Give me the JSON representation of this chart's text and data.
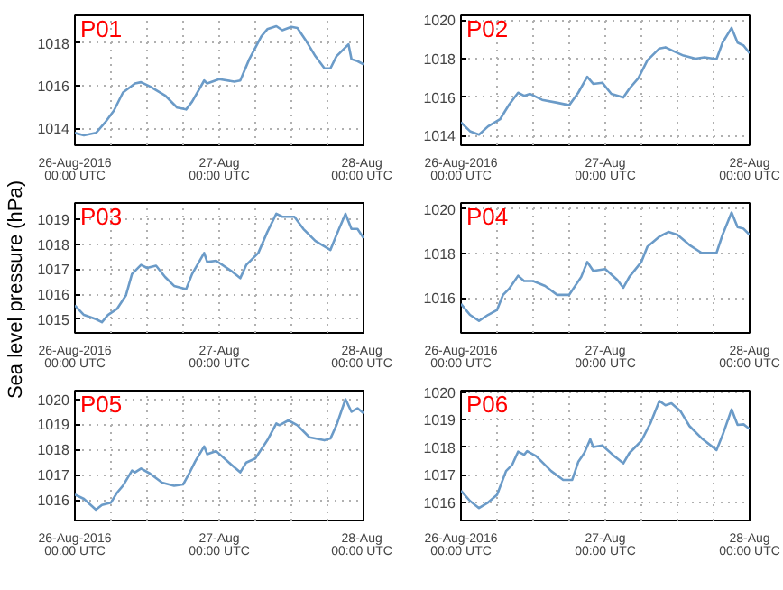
{
  "chart_data": [
    {
      "type": "line",
      "title": "P01",
      "color": "#6b9bc8",
      "grid": true,
      "x": [
        "2016-08-26T00:00",
        "2016-08-26T01:30",
        "2016-08-26T03:30",
        "2016-08-26T05:00",
        "2016-08-26T06:30",
        "2016-08-26T08:00",
        "2016-08-26T10:00",
        "2016-08-26T11:00",
        "2016-08-26T12:30",
        "2016-08-26T15:00",
        "2016-08-26T17:00",
        "2016-08-26T18:30",
        "2016-08-26T19:30",
        "2016-08-26T21:30",
        "2016-08-26T22:00",
        "2016-08-27T00:00",
        "2016-08-27T02:30",
        "2016-08-27T03:30",
        "2016-08-27T05:00",
        "2016-08-27T07:00",
        "2016-08-27T08:00",
        "2016-08-27T09:30",
        "2016-08-27T10:30",
        "2016-08-27T12:00",
        "2016-08-27T13:00",
        "2016-08-27T14:30",
        "2016-08-27T16:00",
        "2016-08-27T17:30",
        "2016-08-27T18:30",
        "2016-08-27T19:30",
        "2016-08-27T21:30",
        "2016-08-27T22:00",
        "2016-08-27T23:00",
        "2016-08-28T00:00"
      ],
      "values": [
        1013.78,
        1013.67,
        1013.78,
        1014.26,
        1014.83,
        1015.68,
        1016.1,
        1016.16,
        1015.96,
        1015.54,
        1014.97,
        1014.88,
        1015.25,
        1016.24,
        1016.1,
        1016.3,
        1016.19,
        1016.24,
        1017.24,
        1018.31,
        1018.65,
        1018.79,
        1018.6,
        1018.76,
        1018.71,
        1018.08,
        1017.38,
        1016.81,
        1016.81,
        1017.38,
        1017.94,
        1017.24,
        1017.15,
        1017.0
      ],
      "xlim": [
        "2016-08-26T00:00",
        "2016-08-28T00:00"
      ],
      "xticks": [
        {
          "value": "2016-08-26T00:00",
          "label": "26-Aug-2016\n00:00 UTC"
        },
        {
          "value": "2016-08-26T06:00",
          "label": null
        },
        {
          "value": "2016-08-26T12:00",
          "label": null
        },
        {
          "value": "2016-08-26T18:00",
          "label": null
        },
        {
          "value": "2016-08-27T00:00",
          "label": "27-Aug\n00:00 UTC"
        },
        {
          "value": "2016-08-27T06:00",
          "label": null
        },
        {
          "value": "2016-08-27T12:00",
          "label": null
        },
        {
          "value": "2016-08-27T18:00",
          "label": null
        },
        {
          "value": "2016-08-28T00:00",
          "label": "28-Aug\n00:00 UTC"
        }
      ],
      "ylim": [
        1013.2,
        1019.3
      ],
      "yticks": [
        1014,
        1016,
        1018
      ]
    },
    {
      "type": "line",
      "title": "P02",
      "color": "#6b9bc8",
      "grid": true,
      "x": [
        "2016-08-26T00:00",
        "2016-08-26T01:30",
        "2016-08-26T03:00",
        "2016-08-26T04:30",
        "2016-08-26T06:30",
        "2016-08-26T08:00",
        "2016-08-26T09:30",
        "2016-08-26T10:30",
        "2016-08-26T11:30",
        "2016-08-26T13:30",
        "2016-08-26T16:00",
        "2016-08-26T18:00",
        "2016-08-26T19:30",
        "2016-08-26T21:00",
        "2016-08-26T22:00",
        "2016-08-26T23:30",
        "2016-08-27T01:00",
        "2016-08-27T03:00",
        "2016-08-27T04:00",
        "2016-08-27T05:30",
        "2016-08-27T07:00",
        "2016-08-27T09:00",
        "2016-08-27T10:00",
        "2016-08-27T11:30",
        "2016-08-27T13:00",
        "2016-08-27T15:00",
        "2016-08-27T16:30",
        "2016-08-27T18:30",
        "2016-08-27T19:30",
        "2016-08-27T21:00",
        "2016-08-27T22:00",
        "2016-08-27T23:00",
        "2016-08-28T00:00"
      ],
      "values": [
        1014.69,
        1014.23,
        1014.05,
        1014.48,
        1014.85,
        1015.61,
        1016.23,
        1016.07,
        1016.17,
        1015.86,
        1015.71,
        1015.58,
        1016.23,
        1017.06,
        1016.69,
        1016.75,
        1016.17,
        1015.98,
        1016.44,
        1016.99,
        1017.91,
        1018.53,
        1018.59,
        1018.37,
        1018.16,
        1018.0,
        1018.07,
        1017.98,
        1018.83,
        1019.6,
        1018.83,
        1018.68,
        1018.28
      ],
      "xlim": [
        "2016-08-26T00:00",
        "2016-08-28T00:00"
      ],
      "xticks": [
        {
          "value": "2016-08-26T00:00",
          "label": "26-Aug-2016\n00:00 UTC"
        },
        {
          "value": "2016-08-26T06:00",
          "label": null
        },
        {
          "value": "2016-08-26T12:00",
          "label": null
        },
        {
          "value": "2016-08-26T18:00",
          "label": null
        },
        {
          "value": "2016-08-27T00:00",
          "label": "27-Aug\n00:00 UTC"
        },
        {
          "value": "2016-08-27T06:00",
          "label": null
        },
        {
          "value": "2016-08-27T12:00",
          "label": null
        },
        {
          "value": "2016-08-27T18:00",
          "label": null
        },
        {
          "value": "2016-08-28T00:00",
          "label": "28-Aug\n00:00 UTC"
        }
      ],
      "ylim": [
        1013.5,
        1020.25
      ],
      "yticks": [
        1014,
        1016,
        1018,
        1020
      ]
    },
    {
      "type": "line",
      "title": "P03",
      "ylabel": "Sea level pressure (hPa)",
      "color": "#6b9bc8",
      "grid": true,
      "x": [
        "2016-08-26T00:00",
        "2016-08-26T01:30",
        "2016-08-26T03:30",
        "2016-08-26T04:30",
        "2016-08-26T05:30",
        "2016-08-26T07:00",
        "2016-08-26T08:30",
        "2016-08-26T09:30",
        "2016-08-26T11:00",
        "2016-08-26T12:00",
        "2016-08-26T13:30",
        "2016-08-26T15:00",
        "2016-08-26T16:30",
        "2016-08-26T18:30",
        "2016-08-26T19:30",
        "2016-08-26T21:30",
        "2016-08-26T22:00",
        "2016-08-26T23:30",
        "2016-08-27T02:00",
        "2016-08-27T03:30",
        "2016-08-27T04:30",
        "2016-08-27T06:30",
        "2016-08-27T08:00",
        "2016-08-27T09:30",
        "2016-08-27T10:30",
        "2016-08-27T12:30",
        "2016-08-27T14:00",
        "2016-08-27T16:00",
        "2016-08-27T18:30",
        "2016-08-27T19:30",
        "2016-08-27T21:00",
        "2016-08-27T22:00",
        "2016-08-27T23:00",
        "2016-08-28T00:00"
      ],
      "values": [
        1015.55,
        1015.17,
        1015.0,
        1014.88,
        1015.17,
        1015.41,
        1015.96,
        1016.81,
        1017.17,
        1017.05,
        1017.14,
        1016.69,
        1016.33,
        1016.2,
        1016.81,
        1017.65,
        1017.29,
        1017.34,
        1016.93,
        1016.64,
        1017.17,
        1017.65,
        1018.49,
        1019.22,
        1019.1,
        1019.1,
        1018.61,
        1018.13,
        1017.77,
        1018.37,
        1019.22,
        1018.61,
        1018.61,
        1018.25
      ],
      "xlim": [
        "2016-08-26T00:00",
        "2016-08-28T00:00"
      ],
      "xticks": [
        {
          "value": "2016-08-26T00:00",
          "label": "26-Aug-2016\n00:00 UTC"
        },
        {
          "value": "2016-08-26T06:00",
          "label": null
        },
        {
          "value": "2016-08-26T12:00",
          "label": null
        },
        {
          "value": "2016-08-26T18:00",
          "label": null
        },
        {
          "value": "2016-08-27T00:00",
          "label": "27-Aug\n00:00 UTC"
        },
        {
          "value": "2016-08-27T06:00",
          "label": null
        },
        {
          "value": "2016-08-27T12:00",
          "label": null
        },
        {
          "value": "2016-08-27T18:00",
          "label": null
        },
        {
          "value": "2016-08-28T00:00",
          "label": "28-Aug\n00:00 UTC"
        }
      ],
      "ylim": [
        1014.45,
        1019.65
      ],
      "yticks": [
        1015,
        1016,
        1017,
        1018,
        1019
      ]
    },
    {
      "type": "line",
      "title": "P04",
      "color": "#6b9bc8",
      "grid": true,
      "x": [
        "2016-08-26T00:00",
        "2016-08-26T01:30",
        "2016-08-26T03:00",
        "2016-08-26T04:30",
        "2016-08-26T06:00",
        "2016-08-26T07:00",
        "2016-08-26T08:00",
        "2016-08-26T09:30",
        "2016-08-26T10:30",
        "2016-08-26T12:00",
        "2016-08-26T14:00",
        "2016-08-26T16:00",
        "2016-08-26T18:00",
        "2016-08-26T20:00",
        "2016-08-26T21:00",
        "2016-08-26T22:00",
        "2016-08-27T00:00",
        "2016-08-27T02:00",
        "2016-08-27T03:00",
        "2016-08-27T04:00",
        "2016-08-27T06:00",
        "2016-08-27T07:00",
        "2016-08-27T09:00",
        "2016-08-27T10:30",
        "2016-08-27T12:00",
        "2016-08-27T14:00",
        "2016-08-27T16:00",
        "2016-08-27T18:30",
        "2016-08-27T19:30",
        "2016-08-27T21:00",
        "2016-08-27T22:00",
        "2016-08-27T23:00",
        "2016-08-28T00:00"
      ],
      "values": [
        1015.73,
        1015.24,
        1014.97,
        1015.24,
        1015.46,
        1016.14,
        1016.41,
        1017.0,
        1016.76,
        1016.76,
        1016.54,
        1016.14,
        1016.14,
        1016.95,
        1017.62,
        1017.22,
        1017.3,
        1016.81,
        1016.46,
        1016.95,
        1017.62,
        1018.3,
        1018.76,
        1018.97,
        1018.84,
        1018.38,
        1018.03,
        1018.03,
        1018.84,
        1019.84,
        1019.19,
        1019.11,
        1018.84
      ],
      "xlim": [
        "2016-08-26T00:00",
        "2016-08-28T00:00"
      ],
      "xticks": [
        {
          "value": "2016-08-26T00:00",
          "label": "26-Aug-2016\n00:00 UTC"
        },
        {
          "value": "2016-08-26T06:00",
          "label": null
        },
        {
          "value": "2016-08-26T12:00",
          "label": null
        },
        {
          "value": "2016-08-26T18:00",
          "label": null
        },
        {
          "value": "2016-08-27T00:00",
          "label": "27-Aug\n00:00 UTC"
        },
        {
          "value": "2016-08-27T06:00",
          "label": null
        },
        {
          "value": "2016-08-27T12:00",
          "label": null
        },
        {
          "value": "2016-08-27T18:00",
          "label": null
        },
        {
          "value": "2016-08-28T00:00",
          "label": "28-Aug\n00:00 UTC"
        }
      ],
      "ylim": [
        1014.43,
        1020.27
      ],
      "yticks": [
        1016,
        1018,
        1020
      ]
    },
    {
      "type": "line",
      "title": "P05",
      "color": "#6b9bc8",
      "grid": true,
      "x": [
        "2016-08-26T00:00",
        "2016-08-26T01:30",
        "2016-08-26T03:30",
        "2016-08-26T04:30",
        "2016-08-26T06:00",
        "2016-08-26T07:00",
        "2016-08-26T08:00",
        "2016-08-26T09:30",
        "2016-08-26T10:00",
        "2016-08-26T11:00",
        "2016-08-26T12:30",
        "2016-08-26T14:30",
        "2016-08-26T16:30",
        "2016-08-26T18:00",
        "2016-08-26T19:00",
        "2016-08-26T20:00",
        "2016-08-26T21:30",
        "2016-08-26T22:00",
        "2016-08-26T23:30",
        "2016-08-27T02:00",
        "2016-08-27T03:30",
        "2016-08-27T04:30",
        "2016-08-27T06:00",
        "2016-08-27T08:00",
        "2016-08-27T09:30",
        "2016-08-27T10:00",
        "2016-08-27T11:30",
        "2016-08-27T13:00",
        "2016-08-27T15:00",
        "2016-08-27T17:30",
        "2016-08-27T18:30",
        "2016-08-27T19:30",
        "2016-08-27T21:00",
        "2016-08-27T22:00",
        "2016-08-27T23:00",
        "2016-08-28T00:00"
      ],
      "values": [
        1016.22,
        1016.05,
        1015.62,
        1015.81,
        1015.9,
        1016.29,
        1016.57,
        1017.17,
        1017.1,
        1017.25,
        1017.05,
        1016.69,
        1016.57,
        1016.62,
        1017.05,
        1017.53,
        1018.13,
        1017.82,
        1017.94,
        1017.41,
        1017.1,
        1017.49,
        1017.65,
        1018.37,
        1019.04,
        1018.97,
        1019.16,
        1018.97,
        1018.49,
        1018.37,
        1018.44,
        1018.97,
        1020.0,
        1019.5,
        1019.64,
        1019.45
      ],
      "xlim": [
        "2016-08-26T00:00",
        "2016-08-28T00:00"
      ],
      "xticks": [
        {
          "value": "2016-08-26T00:00",
          "label": "26-Aug-2016\n00:00 UTC"
        },
        {
          "value": "2016-08-26T06:00",
          "label": null
        },
        {
          "value": "2016-08-26T12:00",
          "label": null
        },
        {
          "value": "2016-08-26T18:00",
          "label": null
        },
        {
          "value": "2016-08-27T00:00",
          "label": "27-Aug\n00:00 UTC"
        },
        {
          "value": "2016-08-27T06:00",
          "label": null
        },
        {
          "value": "2016-08-27T12:00",
          "label": null
        },
        {
          "value": "2016-08-27T18:00",
          "label": null
        },
        {
          "value": "2016-08-28T00:00",
          "label": "28-Aug\n00:00 UTC"
        }
      ],
      "ylim": [
        1015.19,
        1020.34
      ],
      "yticks": [
        1016,
        1017,
        1018,
        1019,
        1020
      ]
    },
    {
      "type": "line",
      "title": "P06",
      "color": "#6b9bc8",
      "grid": true,
      "x": [
        "2016-08-26T00:00",
        "2016-08-26T01:30",
        "2016-08-26T03:00",
        "2016-08-26T04:30",
        "2016-08-26T06:00",
        "2016-08-26T07:30",
        "2016-08-26T08:30",
        "2016-08-26T09:30",
        "2016-08-26T10:30",
        "2016-08-26T11:00",
        "2016-08-26T12:30",
        "2016-08-26T15:00",
        "2016-08-26T17:00",
        "2016-08-26T18:30",
        "2016-08-26T19:30",
        "2016-08-26T20:30",
        "2016-08-26T21:30",
        "2016-08-26T22:00",
        "2016-08-26T23:30",
        "2016-08-27T01:30",
        "2016-08-27T03:00",
        "2016-08-27T04:00",
        "2016-08-27T06:00",
        "2016-08-27T07:30",
        "2016-08-27T09:00",
        "2016-08-27T10:00",
        "2016-08-27T11:00",
        "2016-08-27T12:30",
        "2016-08-27T14:00",
        "2016-08-27T16:00",
        "2016-08-27T18:30",
        "2016-08-27T19:30",
        "2016-08-27T21:00",
        "2016-08-27T22:00",
        "2016-08-27T23:00",
        "2016-08-28T00:00"
      ],
      "values": [
        1016.43,
        1016.06,
        1015.8,
        1016.0,
        1016.28,
        1017.14,
        1017.36,
        1017.84,
        1017.73,
        1017.86,
        1017.68,
        1017.14,
        1016.82,
        1016.82,
        1017.47,
        1017.79,
        1018.29,
        1018.01,
        1018.07,
        1017.68,
        1017.42,
        1017.79,
        1018.23,
        1018.87,
        1019.68,
        1019.52,
        1019.59,
        1019.31,
        1018.77,
        1018.33,
        1017.9,
        1018.44,
        1019.37,
        1018.81,
        1018.83,
        1018.66
      ],
      "xlim": [
        "2016-08-26T00:00",
        "2016-08-28T00:00"
      ],
      "xticks": [
        {
          "value": "2016-08-26T00:00",
          "label": "26-Aug-2016\n00:00 UTC"
        },
        {
          "value": "2016-08-26T06:00",
          "label": null
        },
        {
          "value": "2016-08-26T12:00",
          "label": null
        },
        {
          "value": "2016-08-26T18:00",
          "label": null
        },
        {
          "value": "2016-08-27T00:00",
          "label": "27-Aug\n00:00 UTC"
        },
        {
          "value": "2016-08-27T06:00",
          "label": null
        },
        {
          "value": "2016-08-27T12:00",
          "label": null
        },
        {
          "value": "2016-08-27T18:00",
          "label": null
        },
        {
          "value": "2016-08-28T00:00",
          "label": "28-Aug\n00:00 UTC"
        }
      ],
      "ylim": [
        1015.35,
        1020.05
      ],
      "yticks": [
        1016,
        1017,
        1018,
        1019,
        1020
      ]
    }
  ]
}
